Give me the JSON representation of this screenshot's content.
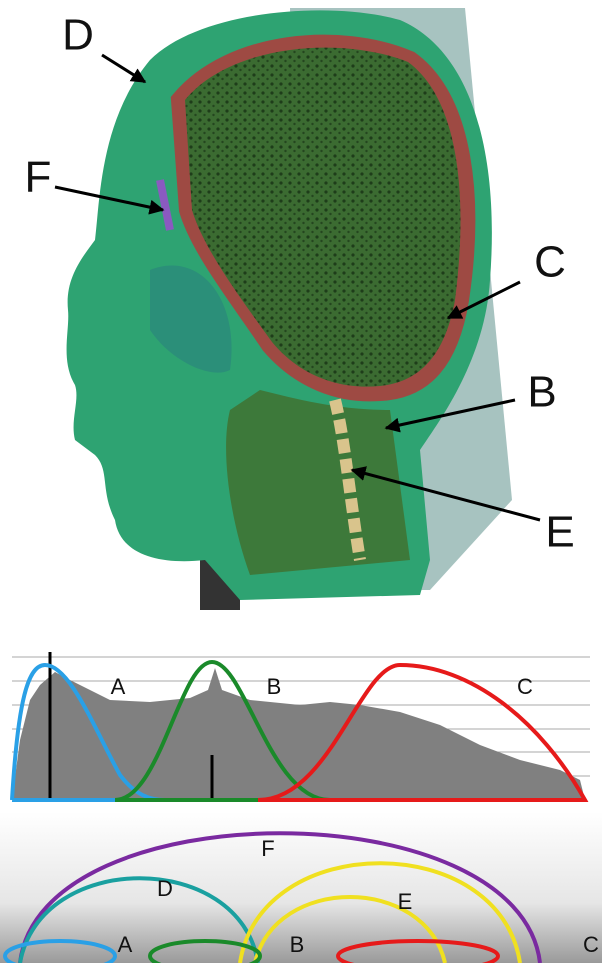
{
  "head_labels": [
    "D",
    "F",
    "C",
    "B",
    "E"
  ],
  "histogram_labels": [
    "A",
    "B",
    "C"
  ],
  "arc_labels": [
    "F",
    "D",
    "E",
    "A",
    "B",
    "C"
  ]
}
